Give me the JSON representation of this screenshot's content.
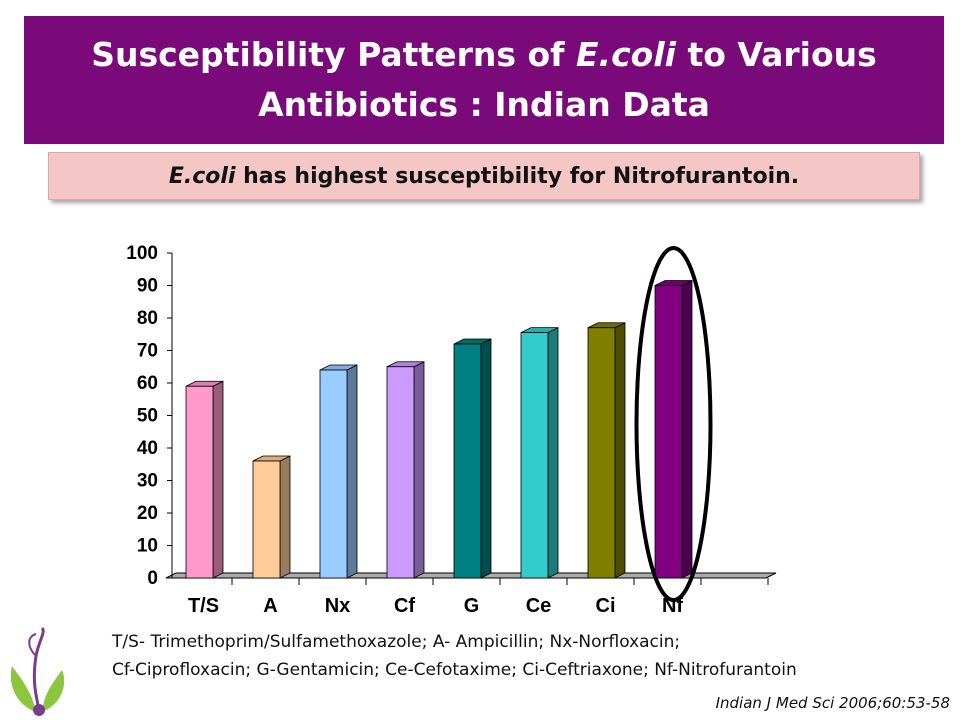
{
  "title": {
    "part1": "Susceptibility Patterns of ",
    "organism": "E.coli",
    "part2": " to Various Antibiotics : Indian Data"
  },
  "subtitle": {
    "organism": "E.coli",
    "text": " has highest susceptibility for Nitrofurantoin."
  },
  "chart_data": {
    "type": "bar",
    "categories": [
      "T/S",
      "A",
      "Nx",
      "Cf",
      "G",
      "Ce",
      "Ci",
      "Nf"
    ],
    "values": [
      59,
      36,
      64,
      65,
      72,
      75.5,
      77,
      90
    ],
    "colors": [
      "#ff99cc",
      "#ffcc99",
      "#99ccff",
      "#cc99ff",
      "#008080",
      "#33cccc",
      "#808000",
      "#800080"
    ],
    "yticks": [
      0,
      10,
      20,
      30,
      40,
      50,
      60,
      70,
      80,
      90,
      100
    ],
    "ylim": [
      0,
      100
    ],
    "highlight": "Nf"
  },
  "legend_note": {
    "line1": "T/S- Trimethoprim/Sulfamethoxazole; A- Ampicillin; Nx-Norfloxacin;",
    "line2": "Cf-Ciprofloxacin; G-Gentamicin; Ce-Cefotaxime; Ci-Ceftriaxone; Nf-Nitrofurantoin"
  },
  "citation": "Indian J Med Sci 2006;60:53-58"
}
